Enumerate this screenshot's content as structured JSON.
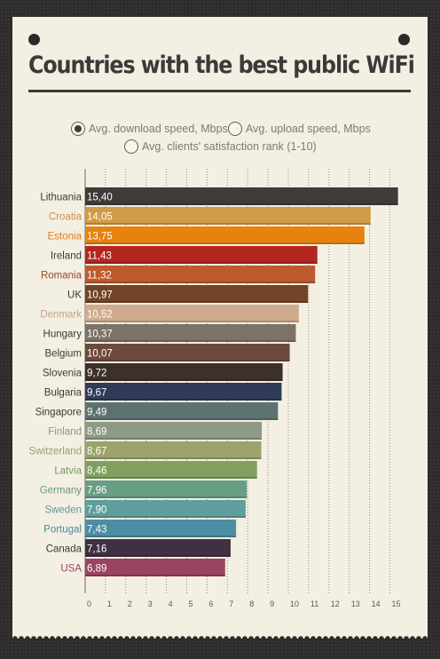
{
  "title": "Countries with the best public WiFi",
  "options": [
    {
      "label": "Avg. download speed, Mbps",
      "selected": true
    },
    {
      "label": "Avg. upload speed, Mbps",
      "selected": false
    },
    {
      "label": "Avg. clients' satisfaction rank (1-10)",
      "selected": false
    }
  ],
  "chart_data": {
    "type": "bar",
    "orientation": "horizontal",
    "categories": [
      "Lithuania",
      "Croatia",
      "Estonia",
      "Ireland",
      "Romania",
      "UK",
      "Denmark",
      "Hungary",
      "Belgium",
      "Slovenia",
      "Bulgaria",
      "Singapore",
      "Finland",
      "Switzerland",
      "Latvia",
      "Germany",
      "Sweden",
      "Portugal",
      "Canada",
      "USA"
    ],
    "values": [
      15.4,
      14.05,
      13.75,
      11.43,
      11.32,
      10.97,
      10.52,
      10.37,
      10.07,
      9.72,
      9.67,
      9.49,
      8.69,
      8.67,
      8.46,
      7.96,
      7.9,
      7.43,
      7.16,
      6.89
    ],
    "value_labels": [
      "15,40",
      "14,05",
      "13,75",
      "11,43",
      "11,32",
      "10,97",
      "10,52",
      "10,37",
      "10,07",
      "9,72",
      "9,67",
      "9,49",
      "8,69",
      "8,67",
      "8,46",
      "7,96",
      "7,90",
      "7,43",
      "7,16",
      "6,89"
    ],
    "colors": [
      "#3d3c38",
      "#cf9b48",
      "#e8820f",
      "#b3261f",
      "#bf5a2e",
      "#734327",
      "#cfab8e",
      "#7d7266",
      "#6e4a3c",
      "#3d2f2a",
      "#2f3b57",
      "#5d726f",
      "#8e9a83",
      "#9ba46a",
      "#80a05f",
      "#689e84",
      "#5e9e9c",
      "#4e8ea4",
      "#3f3042",
      "#9a4460"
    ],
    "label_colors": [
      "#3b3a37",
      "#c99240",
      "#e07c12",
      "#3b3a37",
      "#9a4a2a",
      "#3b3a37",
      "#c8a488",
      "#3b3a37",
      "#3b3a37",
      "#3b3a37",
      "#3b3a37",
      "#3b3a37",
      "#8a9680",
      "#98a068",
      "#7c9a5c",
      "#66987e",
      "#5a9896",
      "#4c8aa0",
      "#3b3a37",
      "#9a4460"
    ],
    "x_ticks": [
      0,
      1,
      2,
      3,
      4,
      5,
      6,
      7,
      8,
      9,
      10,
      11,
      12,
      13,
      14,
      15
    ],
    "xlim": [
      0,
      15.2
    ],
    "grid": true,
    "legend": "none"
  }
}
